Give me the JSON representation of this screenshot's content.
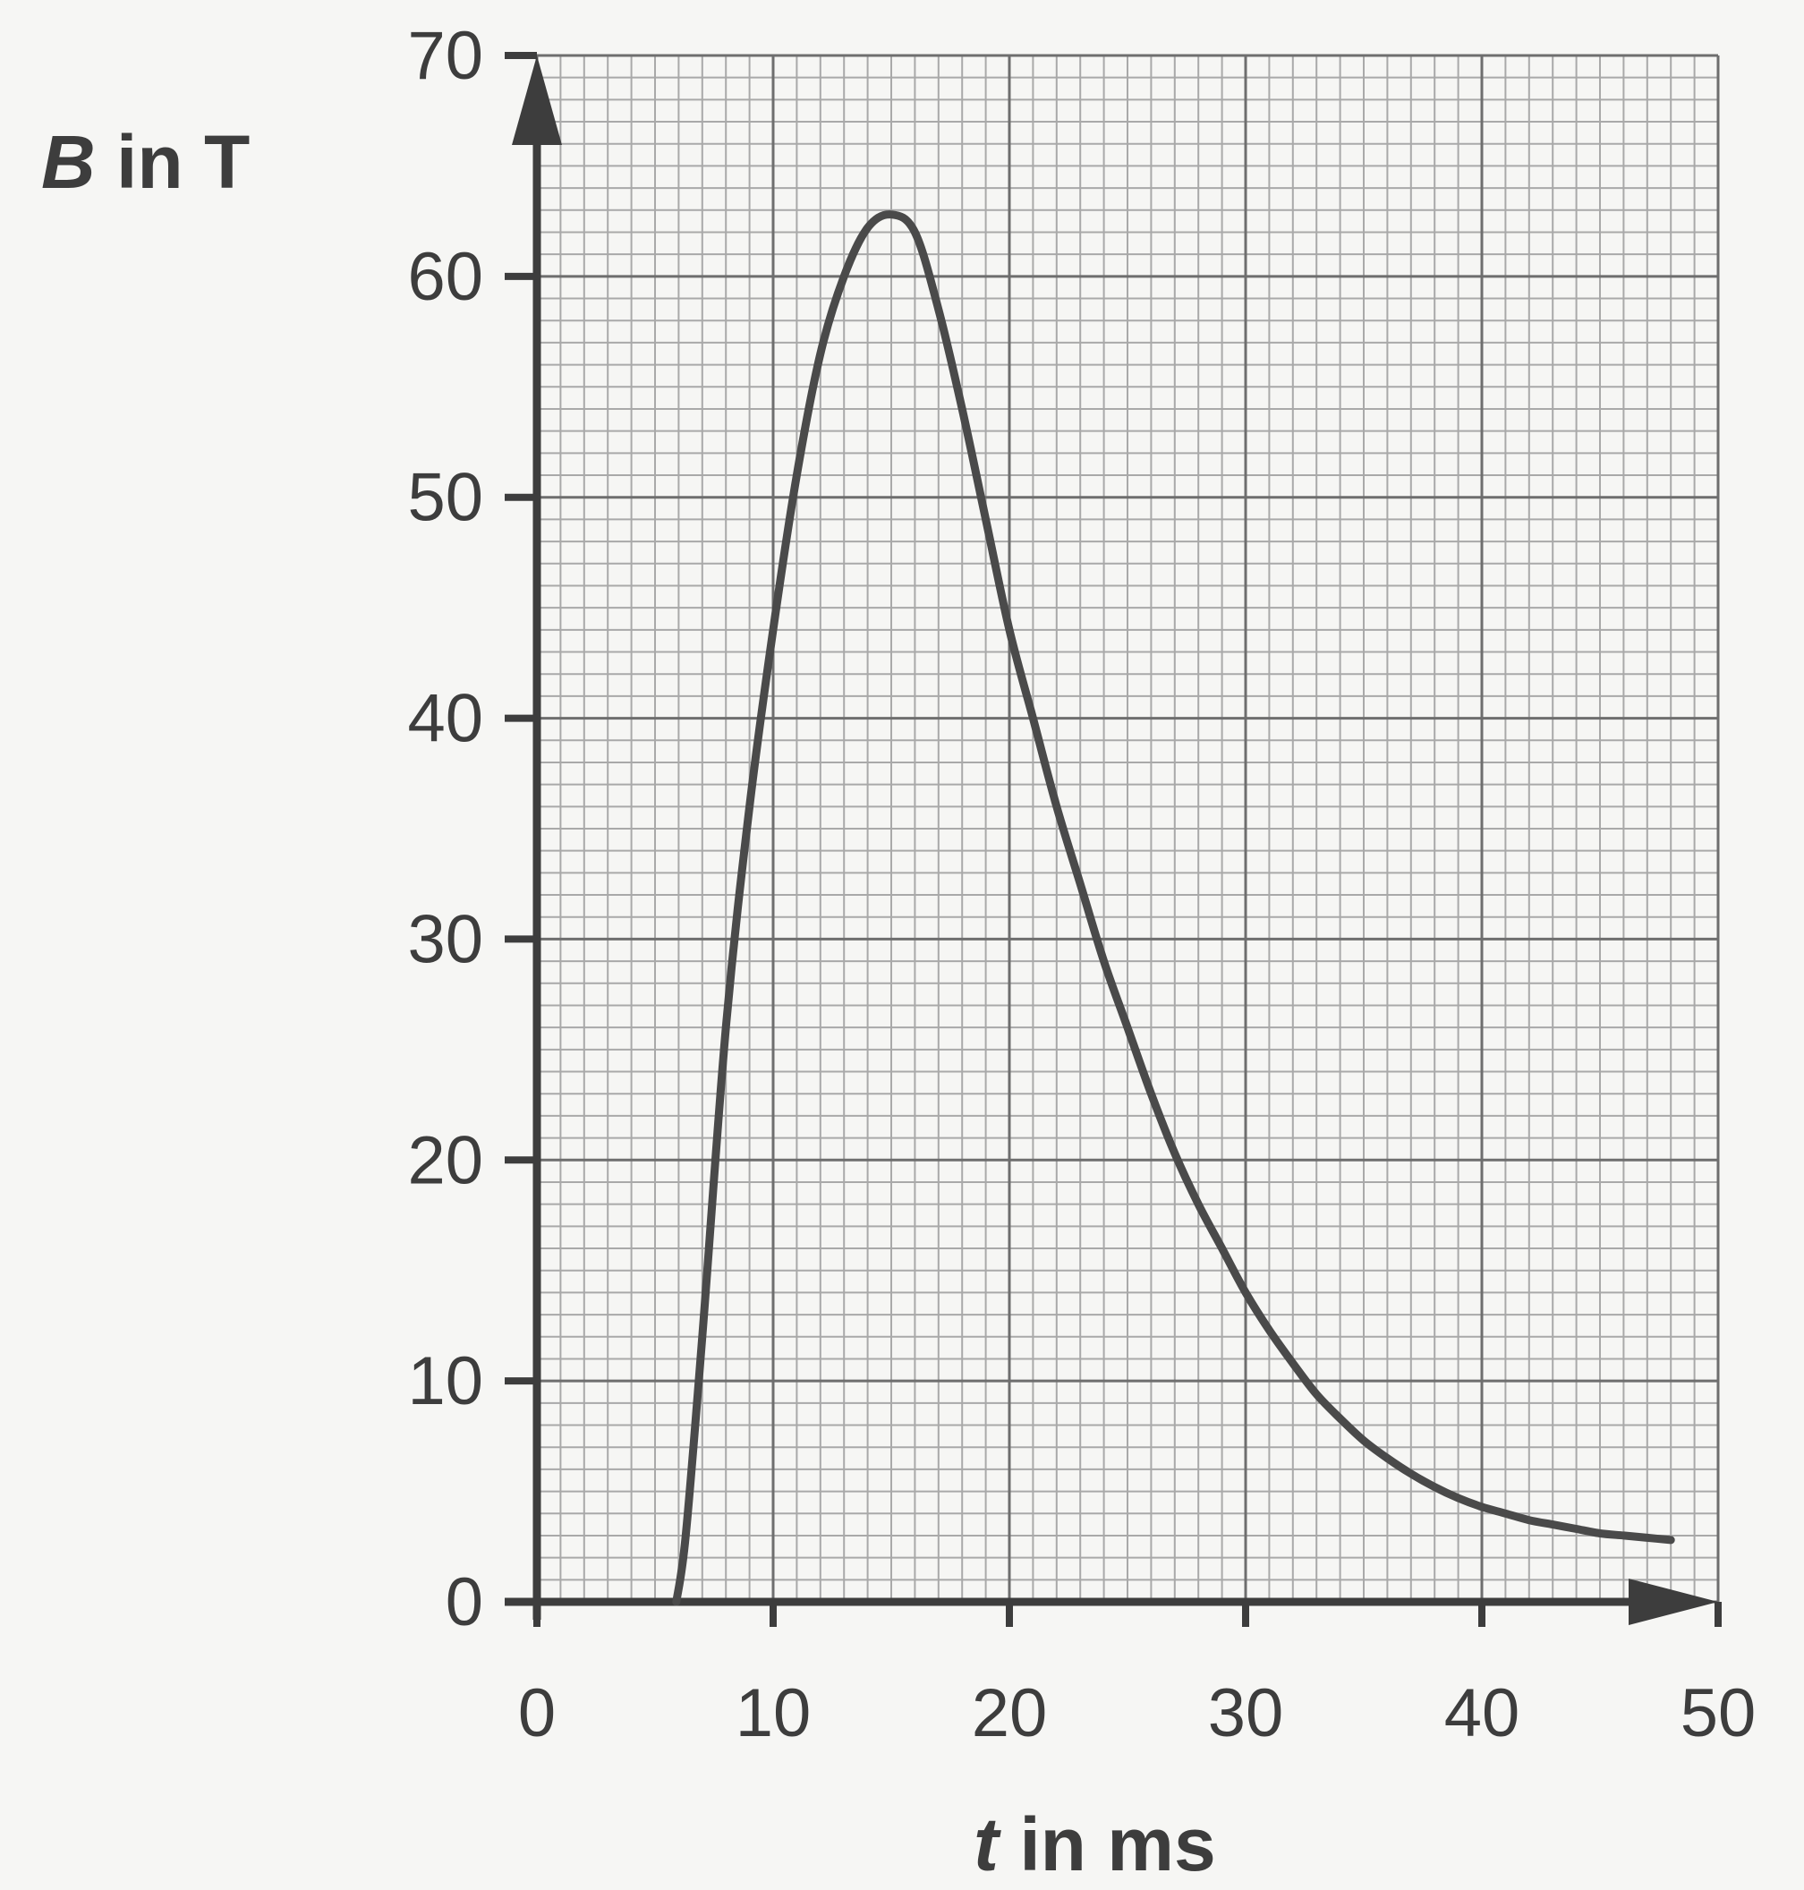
{
  "chart_data": {
    "type": "line",
    "xlabel": {
      "symbol": "t",
      "rest": " in ms"
    },
    "ylabel": {
      "symbol": "B",
      "rest": " in T"
    },
    "xlim": [
      0,
      50
    ],
    "ylim": [
      0,
      70
    ],
    "x_ticks": [
      "0",
      "10",
      "20",
      "30",
      "40",
      "50"
    ],
    "y_ticks": [
      "0",
      "10",
      "20",
      "30",
      "40",
      "50",
      "60",
      "70"
    ],
    "grid": true,
    "grid_minor_step": {
      "x": 1,
      "y": 1
    },
    "grid_major_step": {
      "x": 10,
      "y": 10
    },
    "series": [
      {
        "x": [
          5.9,
          6.3,
          7,
          8,
          9,
          10,
          11,
          12,
          13,
          14,
          15,
          16,
          17,
          18,
          19,
          20,
          21,
          22,
          23,
          24,
          25,
          26,
          27,
          28,
          29,
          30,
          31,
          32,
          33,
          34,
          35,
          36,
          37,
          38,
          39,
          40,
          41,
          42,
          43,
          44,
          45,
          46,
          47,
          48
        ],
        "y": [
          0,
          3,
          12,
          26,
          36,
          44,
          51,
          56.5,
          60,
          62.2,
          62.8,
          62,
          58.5,
          54,
          49,
          44,
          40,
          36,
          32.5,
          29,
          26,
          23,
          20.3,
          18,
          16,
          14,
          12.3,
          10.8,
          9.4,
          8.3,
          7.3,
          6.5,
          5.8,
          5.2,
          4.7,
          4.3,
          4.0,
          3.7,
          3.5,
          3.3,
          3.1,
          3.0,
          2.9,
          2.8
        ]
      }
    ],
    "colors": {
      "curve": "#4a4a4a",
      "axis": "#3d3d3d",
      "grid_minor": "#a9a9a9",
      "grid_major": "#6e6e6e"
    }
  }
}
